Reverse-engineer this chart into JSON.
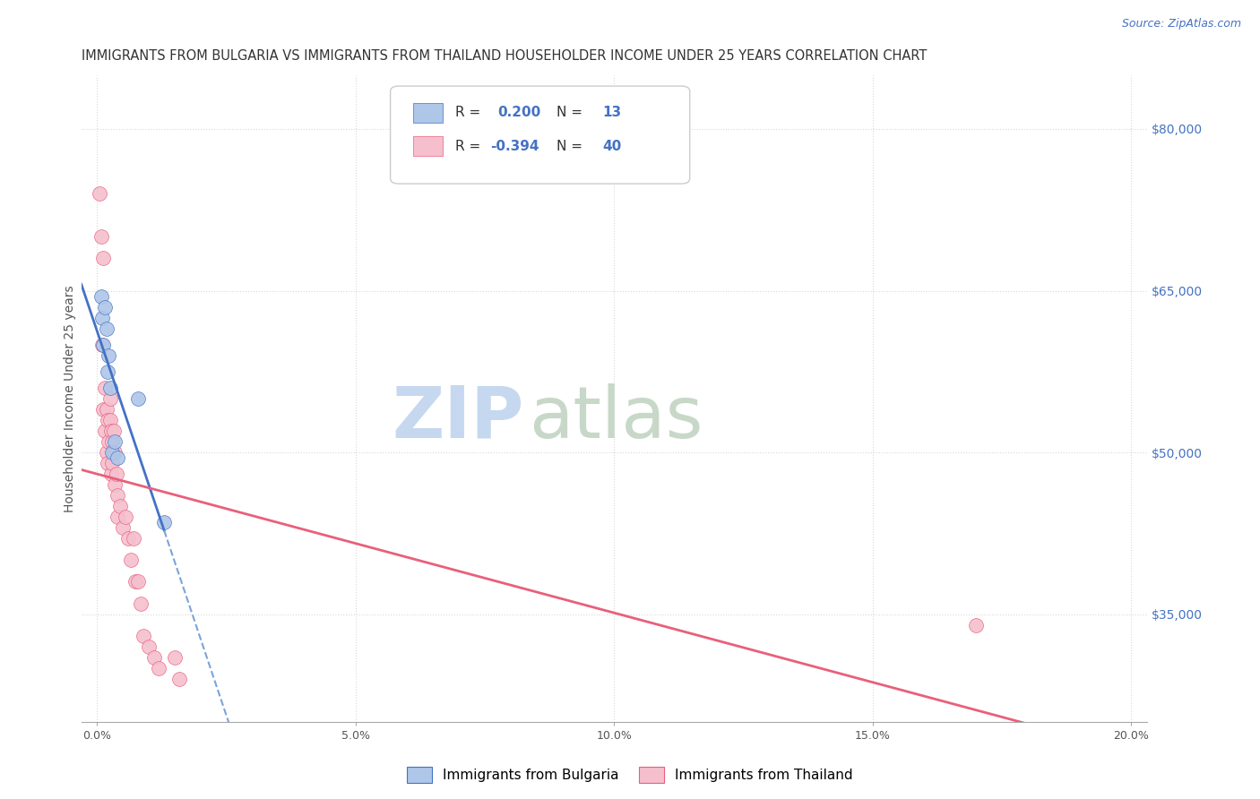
{
  "title": "IMMIGRANTS FROM BULGARIA VS IMMIGRANTS FROM THAILAND HOUSEHOLDER INCOME UNDER 25 YEARS CORRELATION CHART",
  "source": "Source: ZipAtlas.com",
  "xlabel_ticks": [
    "0.0%",
    "5.0%",
    "10.0%",
    "15.0%",
    "20.0%"
  ],
  "xlabel_tick_vals": [
    0.0,
    0.05,
    0.1,
    0.15,
    0.2
  ],
  "ylabel": "Householder Income Under 25 years",
  "ylabel_ticks": [
    "$35,000",
    "$50,000",
    "$65,000",
    "$80,000"
  ],
  "ylabel_tick_vals": [
    35000,
    50000,
    65000,
    80000
  ],
  "ylim": [
    25000,
    85000
  ],
  "xlim": [
    -0.003,
    0.203
  ],
  "legend_bulgaria": "Immigrants from Bulgaria",
  "legend_thailand": "Immigrants from Thailand",
  "R_bulgaria": 0.2,
  "N_bulgaria": 13,
  "R_thailand": -0.394,
  "N_thailand": 40,
  "color_bulgaria": "#aec6e8",
  "color_thailand": "#f5bfce",
  "line_color_bulgaria": "#4472c4",
  "line_color_thailand": "#e8607a",
  "dashed_line_color": "#7aa4d8",
  "watermark_zip_color": "#c5d8f0",
  "watermark_atlas_color": "#c8d8c8",
  "background_color": "#ffffff",
  "grid_color": "#d8d8d8",
  "title_fontsize": 10.5,
  "source_fontsize": 9,
  "axis_label_fontsize": 10,
  "tick_fontsize": 9,
  "legend_fontsize": 11,
  "scatter_size": 130,
  "bulgaria_x": [
    0.0008,
    0.001,
    0.0012,
    0.0015,
    0.0018,
    0.002,
    0.0022,
    0.0025,
    0.003,
    0.0035,
    0.004,
    0.008,
    0.013
  ],
  "bulgaria_y": [
    64500,
    62500,
    60000,
    63500,
    61500,
    57500,
    59000,
    56000,
    50000,
    51000,
    49500,
    55000,
    43500
  ],
  "thailand_x": [
    0.0005,
    0.0008,
    0.001,
    0.0012,
    0.0012,
    0.0015,
    0.0015,
    0.0018,
    0.0018,
    0.002,
    0.002,
    0.0022,
    0.0025,
    0.0025,
    0.0028,
    0.0028,
    0.003,
    0.003,
    0.0032,
    0.0035,
    0.0035,
    0.0038,
    0.004,
    0.004,
    0.0045,
    0.005,
    0.0055,
    0.006,
    0.0065,
    0.007,
    0.0075,
    0.008,
    0.0085,
    0.009,
    0.01,
    0.011,
    0.012,
    0.015,
    0.016,
    0.17
  ],
  "thailand_y": [
    74000,
    70000,
    60000,
    68000,
    54000,
    56000,
    52000,
    54000,
    50000,
    53000,
    49000,
    51000,
    55000,
    53000,
    52000,
    48000,
    51000,
    49000,
    52000,
    50000,
    47000,
    48000,
    46000,
    44000,
    45000,
    43000,
    44000,
    42000,
    40000,
    42000,
    38000,
    38000,
    36000,
    33000,
    32000,
    31000,
    30000,
    31000,
    29000,
    34000
  ]
}
